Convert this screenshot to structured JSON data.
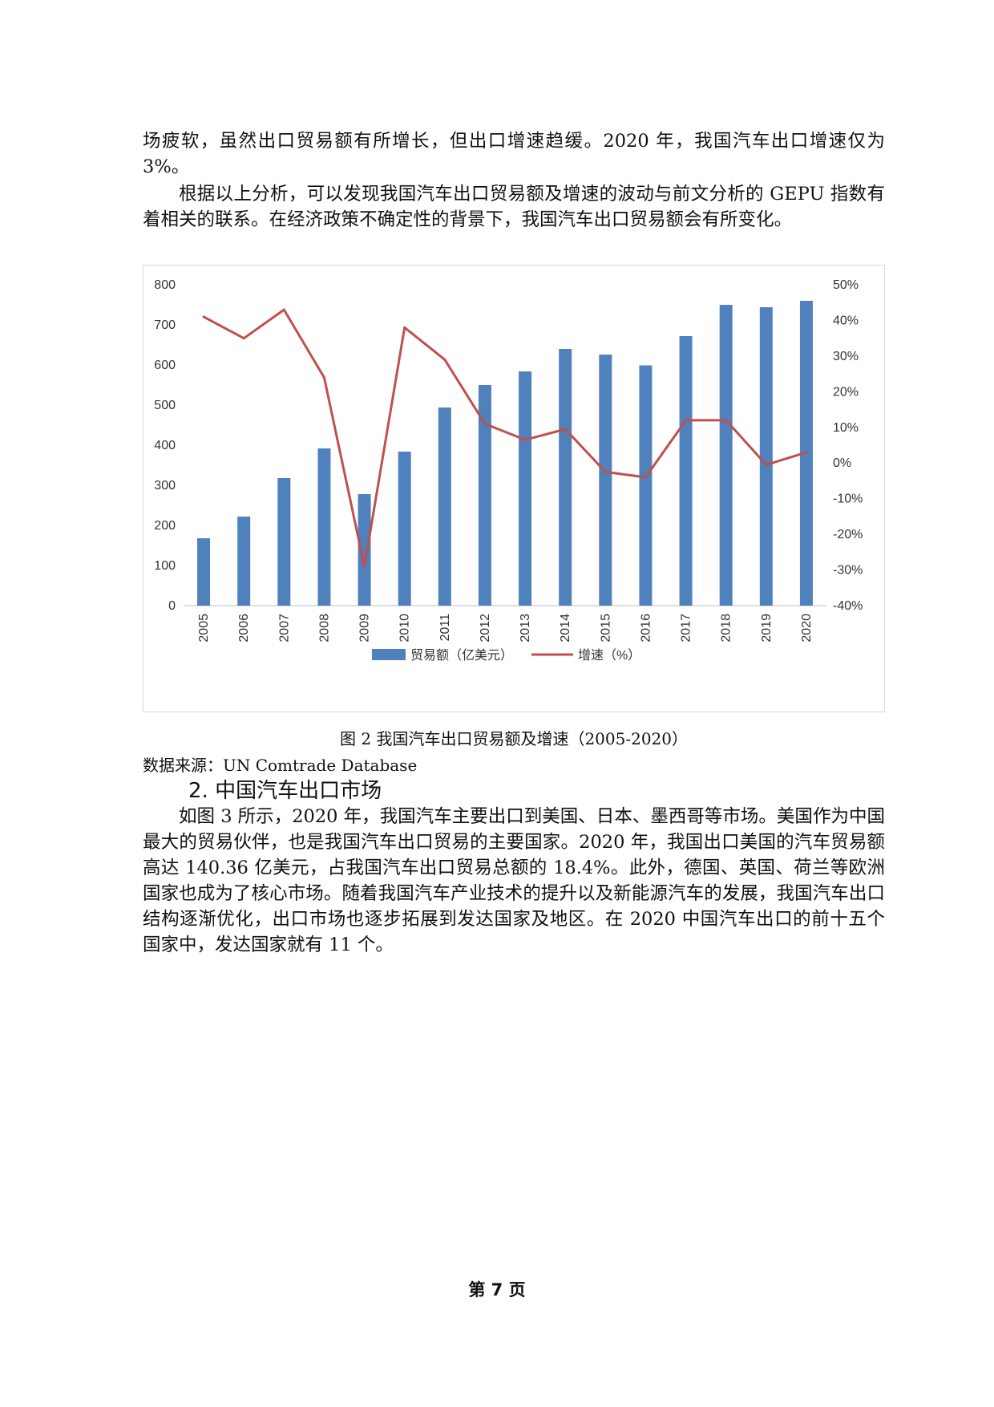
{
  "paragraphs": {
    "p1": "场疲软，虽然出口贸易额有所增长，但出口增速趋缓。2020 年，我国汽车出口增速仅为 3%。",
    "p2": "根据以上分析，可以发现我国汽车出口贸易额及增速的波动与前文分析的 GEPU 指数有着相关的联系。在经济政策不确定性的背景下，我国汽车出口贸易额会有所变化。",
    "p3": "如图 3 所示，2020 年，我国汽车主要出口到美国、日本、墨西哥等市场。美国作为中国最大的贸易伙伴，也是我国汽车出口贸易的主要国家。2020 年，我国出口美国的汽车贸易额高达 140.36 亿美元，占我国汽车出口贸易总额的 18.4%。此外，德国、英国、荷兰等欧洲国家也成为了核心市场。随着我国汽车产业技术的提升以及新能源汽车的发展，我国汽车出口结构逐渐优化，出口市场也逐步拓展到发达国家及地区。在 2020 中国汽车出口的前十五个国家中，发达国家就有 11 个。"
  },
  "figure": {
    "caption": "图 2    我国汽车出口贸易额及增速（2005-2020）",
    "source": "数据来源：UN Comtrade Database"
  },
  "section_heading": "2. 中国汽车出口市场",
  "footer": "第 7 页",
  "chart_data": {
    "type": "bar",
    "title": "",
    "categories": [
      "2005",
      "2006",
      "2007",
      "2008",
      "2009",
      "2010",
      "2011",
      "2012",
      "2013",
      "2014",
      "2015",
      "2016",
      "2017",
      "2018",
      "2019",
      "2020"
    ],
    "series": [
      {
        "name": "贸易额（亿美元）",
        "type": "bar",
        "axis": "left",
        "color": "#4f81bd",
        "values": [
          168,
          222,
          318,
          392,
          278,
          384,
          494,
          550,
          584,
          640,
          626,
          599,
          672,
          750,
          744,
          760
        ]
      },
      {
        "name": "增速（%）",
        "type": "line",
        "axis": "right",
        "color": "#c0504d",
        "values": [
          41,
          35,
          43,
          24,
          -29,
          38,
          29,
          11,
          6.5,
          9.5,
          -2.5,
          -4,
          12,
          12,
          -0.5,
          3
        ]
      }
    ],
    "y_left": {
      "range": [
        0,
        800
      ],
      "ticks": [
        "0",
        "100",
        "200",
        "300",
        "400",
        "500",
        "600",
        "700",
        "800"
      ]
    },
    "y_right": {
      "range": [
        -40,
        50
      ],
      "ticks": [
        "-40%",
        "-30%",
        "-20%",
        "-10%",
        "0%",
        "10%",
        "20%",
        "30%",
        "40%",
        "50%"
      ]
    },
    "grid": false,
    "legend": "bottom"
  }
}
